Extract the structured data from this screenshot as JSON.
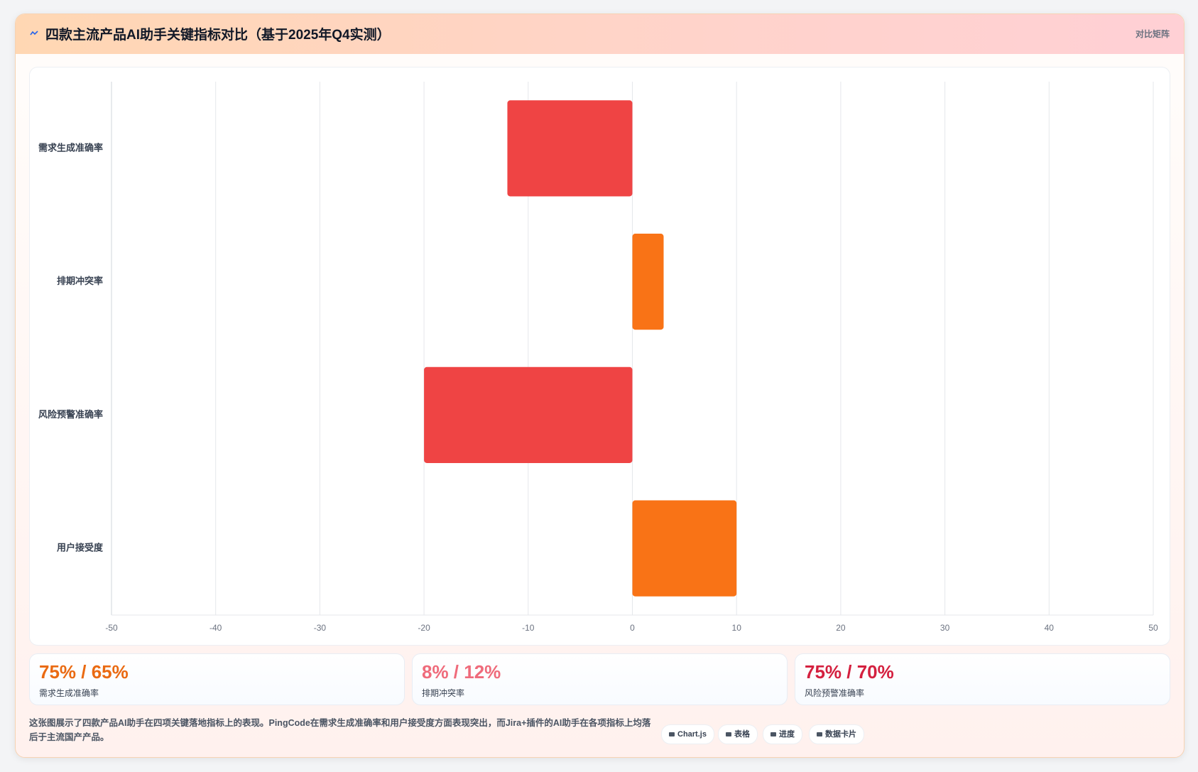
{
  "header": {
    "title": "四款主流产品AI助手关键指标对比（基于2025年Q4实测）",
    "tag": "对比矩阵"
  },
  "chart_data": {
    "type": "bar",
    "orientation": "horizontal",
    "categories": [
      "需求生成准确率",
      "排期冲突率",
      "风险预警准确率",
      "用户接受度"
    ],
    "values": [
      -12,
      3,
      -20,
      10
    ],
    "colors": [
      "#ef4444",
      "#f97316",
      "#ef4444",
      "#f97316"
    ],
    "xlim": [
      -50,
      50
    ],
    "xticks": [
      -50,
      -40,
      -30,
      -20,
      -10,
      0,
      10,
      20,
      30,
      40,
      50
    ],
    "grid": true
  },
  "stats": [
    {
      "value": "75% / 65%",
      "label": "需求生成准确率",
      "color": "#ea6a12"
    },
    {
      "value": "8% / 12%",
      "label": "排期冲突率",
      "color": "#ef6b7b"
    },
    {
      "value": "75% / 70%",
      "label": "风险预警准确率",
      "color": "#d4203f"
    }
  ],
  "footer": {
    "text": "这张图展示了四款产品AI助手在四项关键落地指标上的表现。PingCode在需求生成准确率和用户接受度方面表现突出，而Jira+插件的AI助手在各项指标上均落后于主流国产产品。",
    "tags": [
      "Chart.js",
      "表格",
      "进度",
      "数据卡片"
    ]
  }
}
